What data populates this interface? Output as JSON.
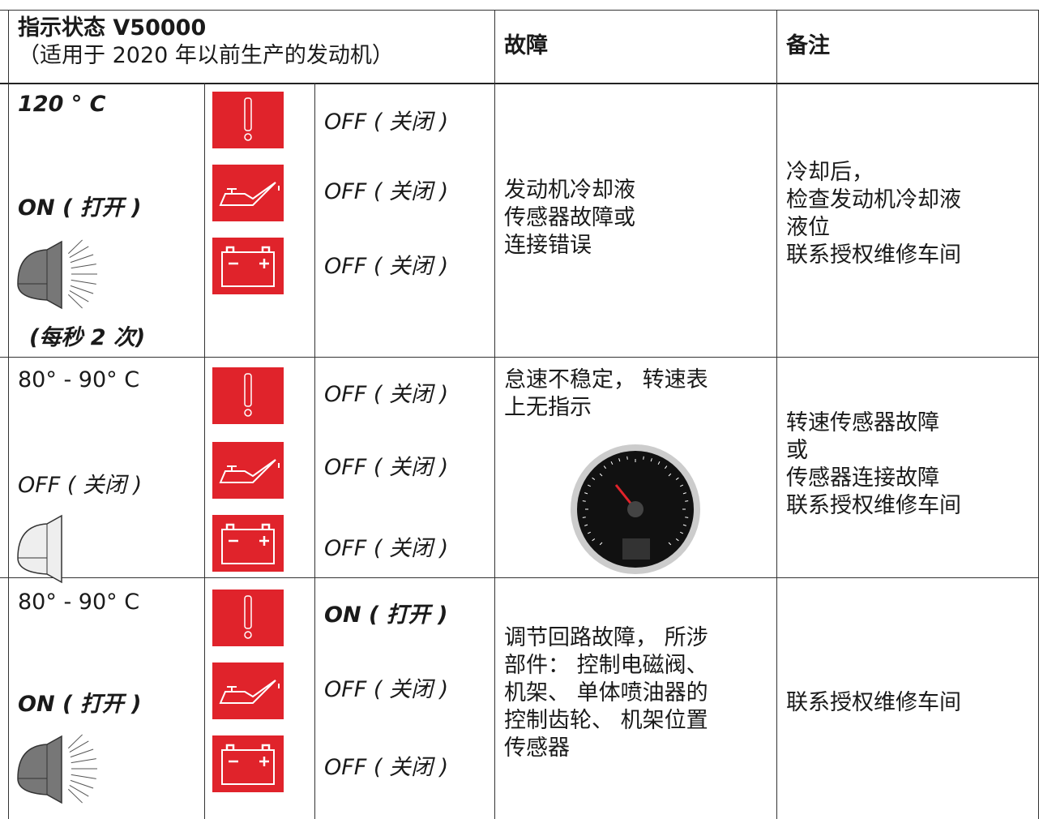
{
  "header": {
    "title": "指示状态 V50000",
    "subtitle": "（适用于 2020 年以前生产的发动机）",
    "fault": "故障",
    "note": "备注"
  },
  "rows": [
    {
      "temperature": "120 ° C",
      "lamp": "ON ( 打开 )",
      "lamp_note": "(每秒 2 次)",
      "indicators": [
        "OFF ( 关闭 )",
        "OFF ( 关闭 )",
        "OFF ( 关闭 )"
      ],
      "fault": [
        "发动机冷却液",
        "传感器故障或",
        "连接错误"
      ],
      "note": [
        "冷却后，",
        "检查发动机冷却液",
        "液位",
        "联系授权维修车间"
      ]
    },
    {
      "temperature": "80° - 90° C",
      "lamp": "OFF ( 关闭 )",
      "indicators": [
        "OFF ( 关闭 )",
        "OFF ( 关闭 )",
        "OFF ( 关闭 )"
      ],
      "fault": [
        "怠速不稳定， 转速表",
        "上无指示"
      ],
      "note": [
        "转速传感器故障",
        "或",
        "传感器连接故障",
        "联系授权维修车间"
      ]
    },
    {
      "temperature": "80° - 90° C",
      "lamp": "ON ( 打开 )",
      "indicators": [
        "ON ( 打开 )",
        "OFF ( 关闭 )",
        "OFF ( 关闭 )"
      ],
      "fault": [
        "调节回路故障， 所涉",
        "部件： 控制电磁阀、",
        "机架、 单体喷油器的",
        "控制齿轮、 机架位置",
        "传感器"
      ],
      "note": [
        "联系授权维修车间"
      ]
    }
  ]
}
